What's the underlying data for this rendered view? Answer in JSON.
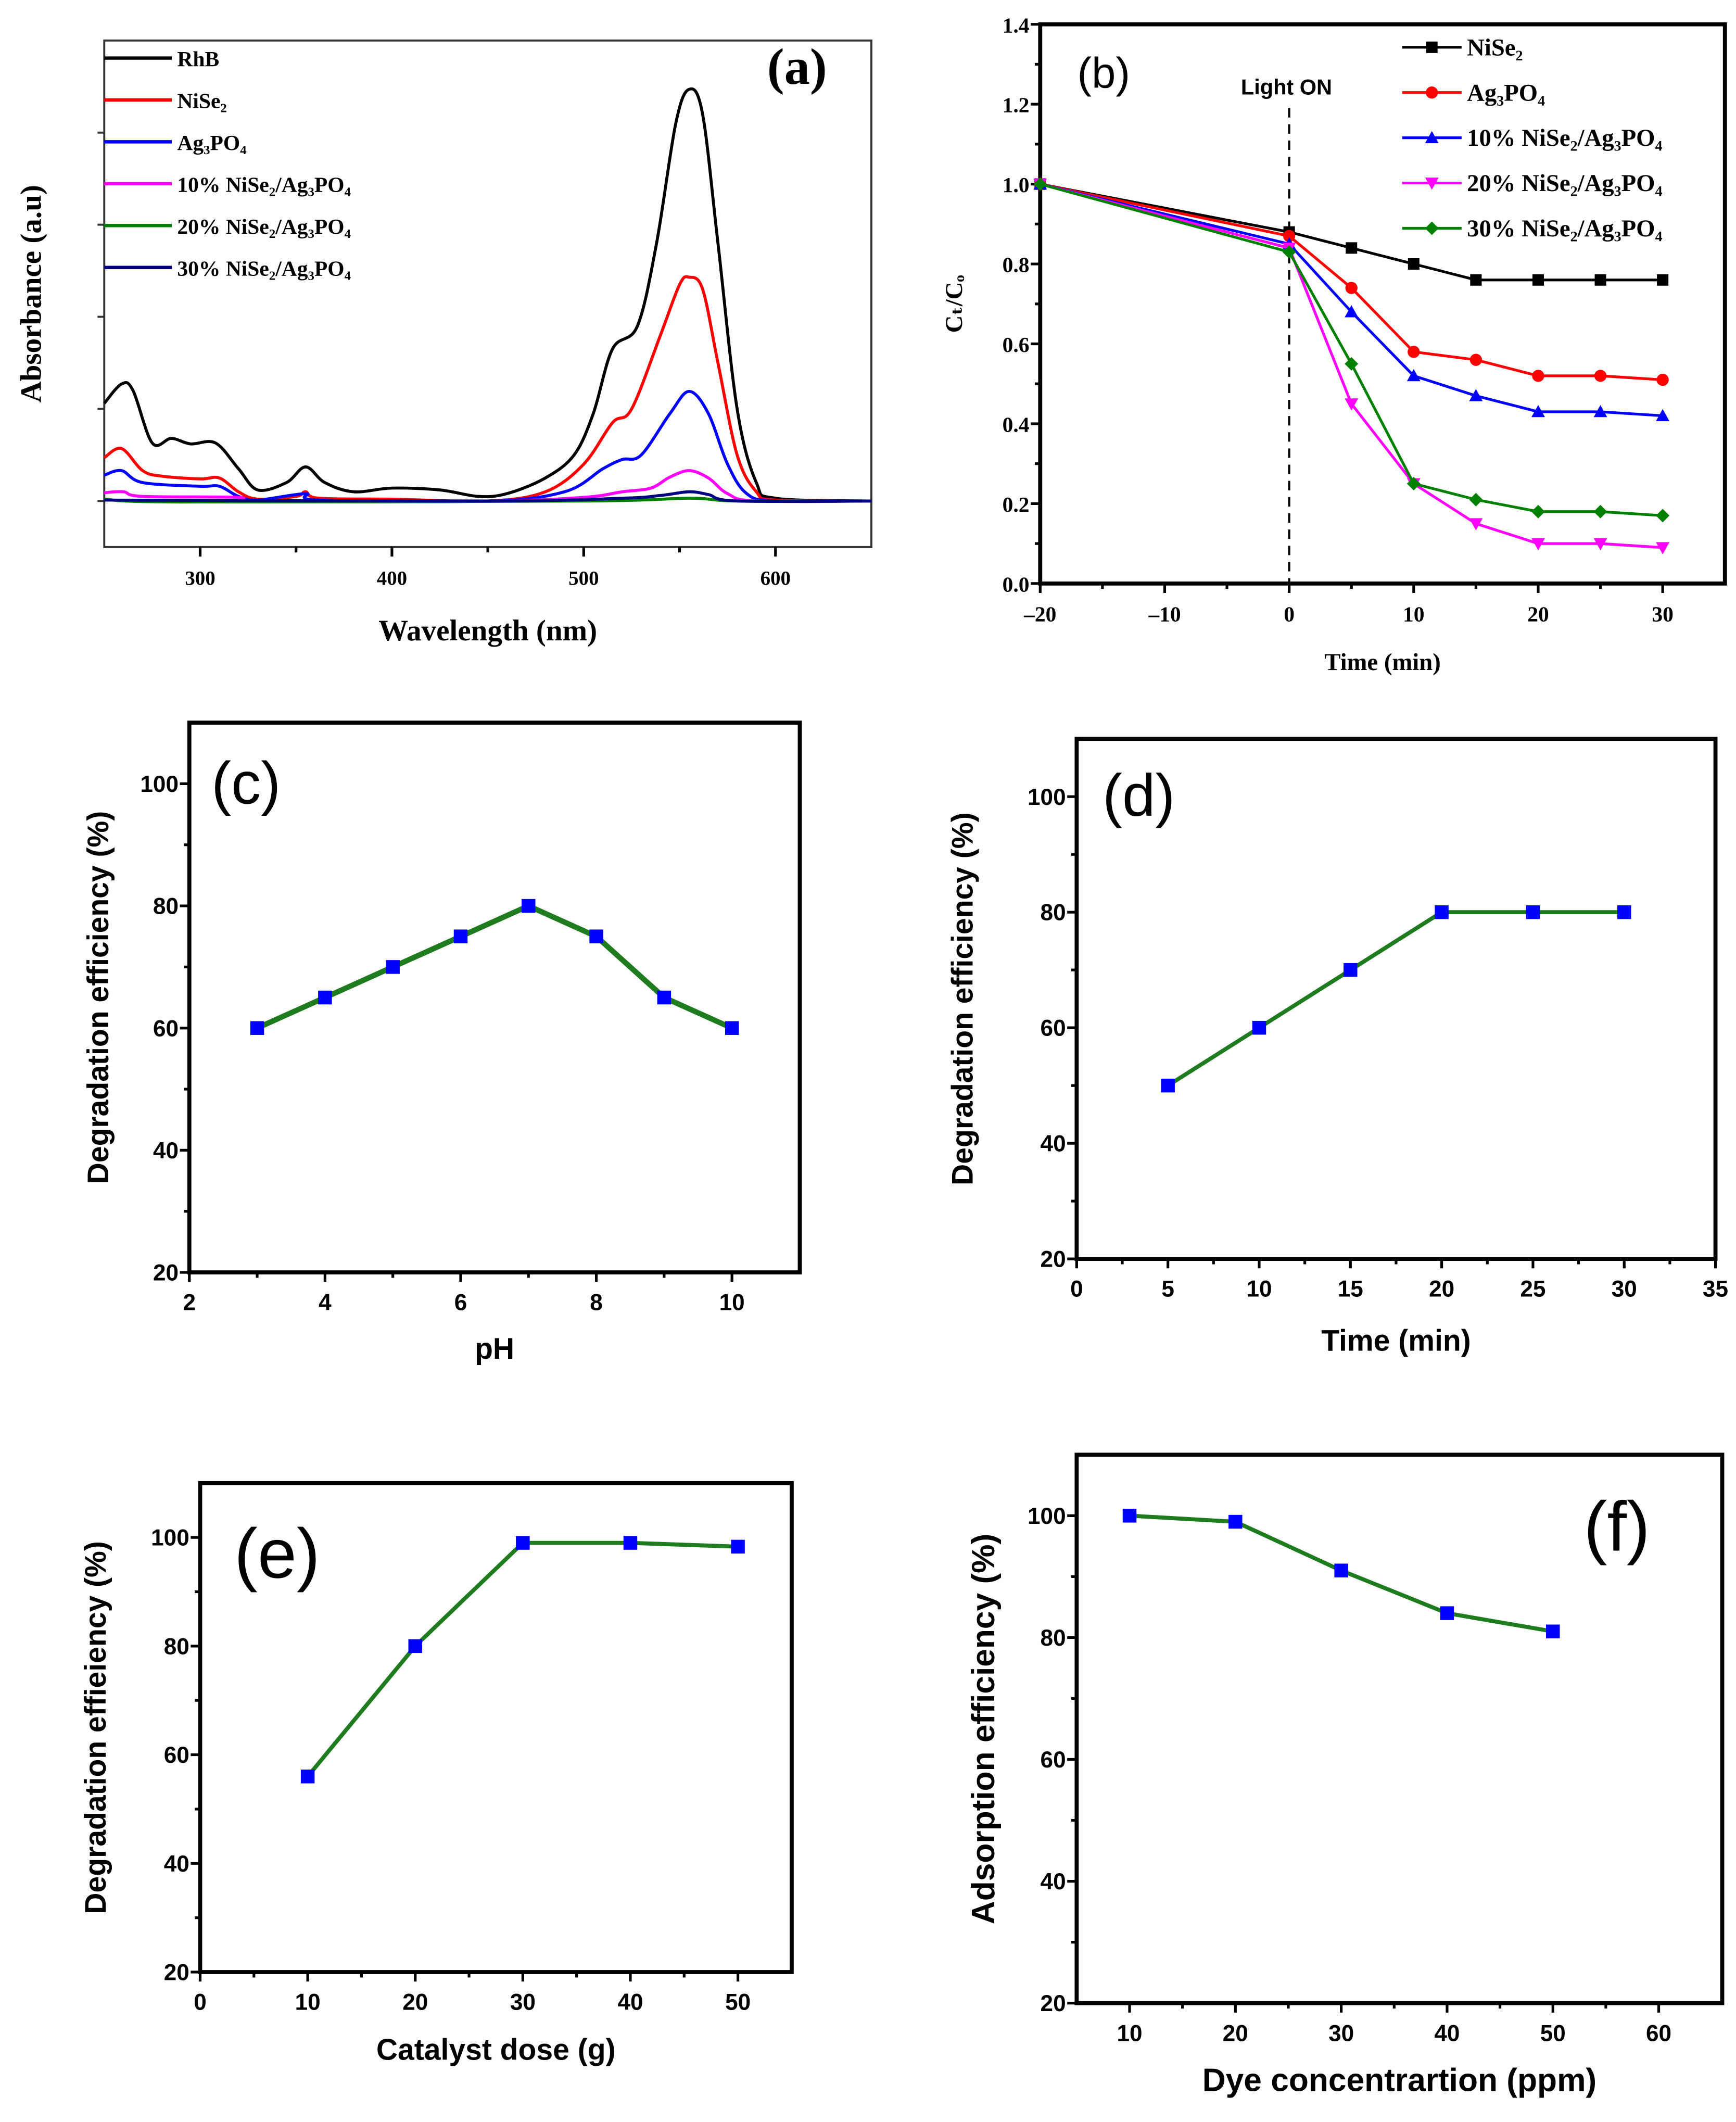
{
  "chart_data": [
    {
      "panel": "(a)",
      "type": "line",
      "xlabel": "Wavelength (nm)",
      "ylabel": "Absorbance (a.u)",
      "xlim": [
        250,
        650
      ],
      "ylim": [
        -0.5,
        5
      ],
      "xticks": [
        300,
        400,
        500,
        600
      ],
      "xtick_labels": [
        "300",
        "400",
        "500",
        "600"
      ],
      "ytick_labels_shown": false,
      "legend_placement": "top-left",
      "series": [
        {
          "name": "RhB",
          "color": "#000000",
          "x": [
            250,
            259,
            265,
            275,
            285,
            295,
            308,
            320,
            330,
            345,
            355,
            365,
            380,
            400,
            425,
            445,
            460,
            480,
            495,
            505,
            515,
            528,
            538,
            548,
            555,
            562,
            570,
            580,
            590,
            600,
            650
          ],
          "y": [
            1.06,
            1.27,
            1.2,
            0.63,
            0.68,
            0.62,
            0.63,
            0.35,
            0.12,
            0.2,
            0.37,
            0.2,
            0.1,
            0.14,
            0.12,
            0.05,
            0.08,
            0.25,
            0.5,
            0.95,
            1.65,
            1.9,
            2.8,
            4.1,
            4.47,
            4.2,
            2.8,
            1.0,
            0.2,
            0.03,
            0
          ]
        },
        {
          "name": "NiSe₂",
          "color": "#ff0000",
          "x": [
            250,
            259,
            270,
            280,
            300,
            310,
            320,
            330,
            350,
            355,
            362,
            400,
            450,
            480,
            500,
            515,
            525,
            540,
            550,
            555,
            562,
            570,
            580,
            590,
            600,
            650
          ],
          "y": [
            0.47,
            0.57,
            0.33,
            0.27,
            0.24,
            0.25,
            0.1,
            0.02,
            0.05,
            0.1,
            0.03,
            0.02,
            0,
            0.1,
            0.4,
            0.85,
            1.0,
            1.8,
            2.35,
            2.43,
            2.3,
            1.5,
            0.5,
            0.1,
            0.01,
            0
          ]
        },
        {
          "name": "Ag₃PO₄",
          "color": "#0000ff",
          "x": [
            250,
            259,
            270,
            300,
            310,
            320,
            330,
            355,
            362,
            450,
            490,
            510,
            520,
            530,
            545,
            555,
            565,
            575,
            585,
            600,
            650
          ],
          "y": [
            0.28,
            0.33,
            0.2,
            0.16,
            0.16,
            0.05,
            0.01,
            0.08,
            0.01,
            0,
            0.1,
            0.35,
            0.45,
            0.5,
            0.95,
            1.19,
            0.95,
            0.4,
            0.08,
            0,
            0
          ]
        },
        {
          "name": "10% NiSe₂/Ag₃PO₄",
          "color": "#ff00ff",
          "x": [
            250,
            260,
            270,
            320,
            330,
            450,
            500,
            520,
            535,
            545,
            555,
            565,
            575,
            590,
            650
          ],
          "y": [
            0.09,
            0.1,
            0.05,
            0.04,
            0,
            0,
            0.04,
            0.1,
            0.14,
            0.26,
            0.33,
            0.25,
            0.08,
            0,
            0
          ]
        },
        {
          "name": "20% NiSe₂/Ag₃PO₄",
          "color": "#008000",
          "x": [
            250,
            290,
            500,
            555,
            580,
            650
          ],
          "y": [
            0.02,
            -0.01,
            0,
            0.03,
            0,
            0
          ]
        },
        {
          "name": "30% NiSe₂/Ag₃PO₄",
          "color": "#000080",
          "x": [
            250,
            450,
            520,
            540,
            555,
            565,
            580,
            650
          ],
          "y": [
            0.01,
            0,
            0.03,
            0.06,
            0.1,
            0.07,
            0,
            0
          ]
        }
      ]
    },
    {
      "panel": "(b)",
      "type": "line",
      "xlabel": "Time (min)",
      "ylabel": "Cₜ/Cₒ",
      "xlim": [
        -20,
        35
      ],
      "ylim": [
        0,
        1.4
      ],
      "xticks": [
        -20,
        -10,
        0,
        10,
        20,
        30
      ],
      "xtick_labels": [
        "–20",
        "–10",
        "0",
        "10",
        "20",
        "30"
      ],
      "yticks": [
        0,
        0.2,
        0.4,
        0.6,
        0.8,
        1.0,
        1.2,
        1.4
      ],
      "ytick_labels": [
        "0.0",
        "0.2",
        "0.4",
        "0.6",
        "0.8",
        "1.0",
        "1.2",
        "1.4"
      ],
      "annotation": "Light ON",
      "annotation_x": 0,
      "legend_placement": "top-right",
      "x": [
        -20,
        0,
        5,
        10,
        15,
        20,
        25,
        30
      ],
      "series": [
        {
          "name": "NiSe₂",
          "color": "#000000",
          "marker": "square",
          "values": [
            1.0,
            0.88,
            0.84,
            0.8,
            0.76,
            0.76,
            0.76,
            0.76
          ]
        },
        {
          "name": "Ag₃PO₄",
          "color": "#ff0000",
          "marker": "circle",
          "values": [
            1.0,
            0.87,
            0.74,
            0.58,
            0.56,
            0.52,
            0.52,
            0.51
          ]
        },
        {
          "name": "10% NiSe₂/Ag₃PO₄",
          "color": "#0000ff",
          "marker": "triangle-up",
          "values": [
            1.0,
            0.85,
            0.68,
            0.52,
            0.47,
            0.43,
            0.43,
            0.42
          ]
        },
        {
          "name": "20% NiSe₂/Ag₃PO₄",
          "color": "#ff00ff",
          "marker": "triangle-down",
          "values": [
            1.0,
            0.84,
            0.45,
            0.25,
            0.15,
            0.1,
            0.1,
            0.09
          ]
        },
        {
          "name": "30% NiSe₂/Ag₃PO₄",
          "color": "#008000",
          "marker": "diamond",
          "values": [
            1.0,
            0.83,
            0.55,
            0.25,
            0.21,
            0.18,
            0.18,
            0.17
          ]
        }
      ]
    },
    {
      "panel": "(c)",
      "type": "line",
      "xlabel": "pH",
      "ylabel": "Degradation efficiency (%)",
      "xlim": [
        2,
        11
      ],
      "ylim": [
        20,
        110
      ],
      "xticks": [
        2,
        4,
        6,
        8,
        10
      ],
      "xtick_labels": [
        "2",
        "4",
        "6",
        "8",
        "10"
      ],
      "yticks": [
        20,
        40,
        60,
        80,
        100
      ],
      "ytick_labels": [
        "20",
        "40",
        "60",
        "80",
        "100"
      ],
      "line_color": "#1e7b1e",
      "marker_color": "#0000ff",
      "x": [
        3,
        4,
        5,
        6,
        7,
        8,
        9,
        10
      ],
      "values": [
        60,
        65,
        70,
        75,
        80,
        75,
        65,
        60
      ]
    },
    {
      "panel": "(d)",
      "type": "line",
      "xlabel": "Time (min)",
      "ylabel": "Degradation efficiency (%)",
      "xlim": [
        0,
        35
      ],
      "ylim": [
        20,
        110
      ],
      "xticks": [
        0,
        5,
        10,
        15,
        20,
        25,
        30,
        35
      ],
      "xtick_labels": [
        "0",
        "5",
        "10",
        "15",
        "20",
        "25",
        "30",
        "35"
      ],
      "yticks": [
        20,
        40,
        60,
        80,
        100
      ],
      "ytick_labels": [
        "20",
        "40",
        "60",
        "80",
        "100"
      ],
      "line_color": "#1e7b1e",
      "marker_color": "#0000ff",
      "x": [
        5,
        10,
        15,
        20,
        25,
        30
      ],
      "values": [
        50,
        60,
        70,
        80,
        80,
        80
      ]
    },
    {
      "panel": "(e)",
      "type": "line",
      "xlabel": "Catalyst dose (g)",
      "ylabel": "Degradation effieiency (%)",
      "xlim": [
        0,
        55
      ],
      "ylim": [
        20,
        110
      ],
      "xticks": [
        0,
        10,
        20,
        30,
        40,
        50
      ],
      "xtick_labels": [
        "0",
        "10",
        "20",
        "30",
        "40",
        "50"
      ],
      "yticks": [
        20,
        40,
        60,
        80,
        100
      ],
      "ytick_labels": [
        "20",
        "40",
        "60",
        "80",
        "100"
      ],
      "line_color": "#1e7b1e",
      "marker_color": "#0000ff",
      "x": [
        10,
        20,
        30,
        40,
        50
      ],
      "values": [
        56,
        80,
        99,
        99,
        98.3
      ]
    },
    {
      "panel": "(f)",
      "type": "line",
      "xlabel": "Dye concentrartion (ppm)",
      "ylabel": "Adsorption efficiency (%)",
      "xlim": [
        5,
        66
      ],
      "ylim": [
        20,
        110
      ],
      "xticks": [
        10,
        20,
        30,
        40,
        50,
        60
      ],
      "xtick_labels": [
        "10",
        "20",
        "30",
        "40",
        "50",
        "60"
      ],
      "yticks": [
        20,
        40,
        60,
        80,
        100
      ],
      "ytick_labels": [
        "20",
        "40",
        "60",
        "80",
        "100"
      ],
      "line_color": "#1e7b1e",
      "marker_color": "#0000ff",
      "x": [
        10,
        20,
        30,
        40,
        50
      ],
      "values": [
        100,
        99,
        91,
        84,
        81
      ]
    }
  ]
}
